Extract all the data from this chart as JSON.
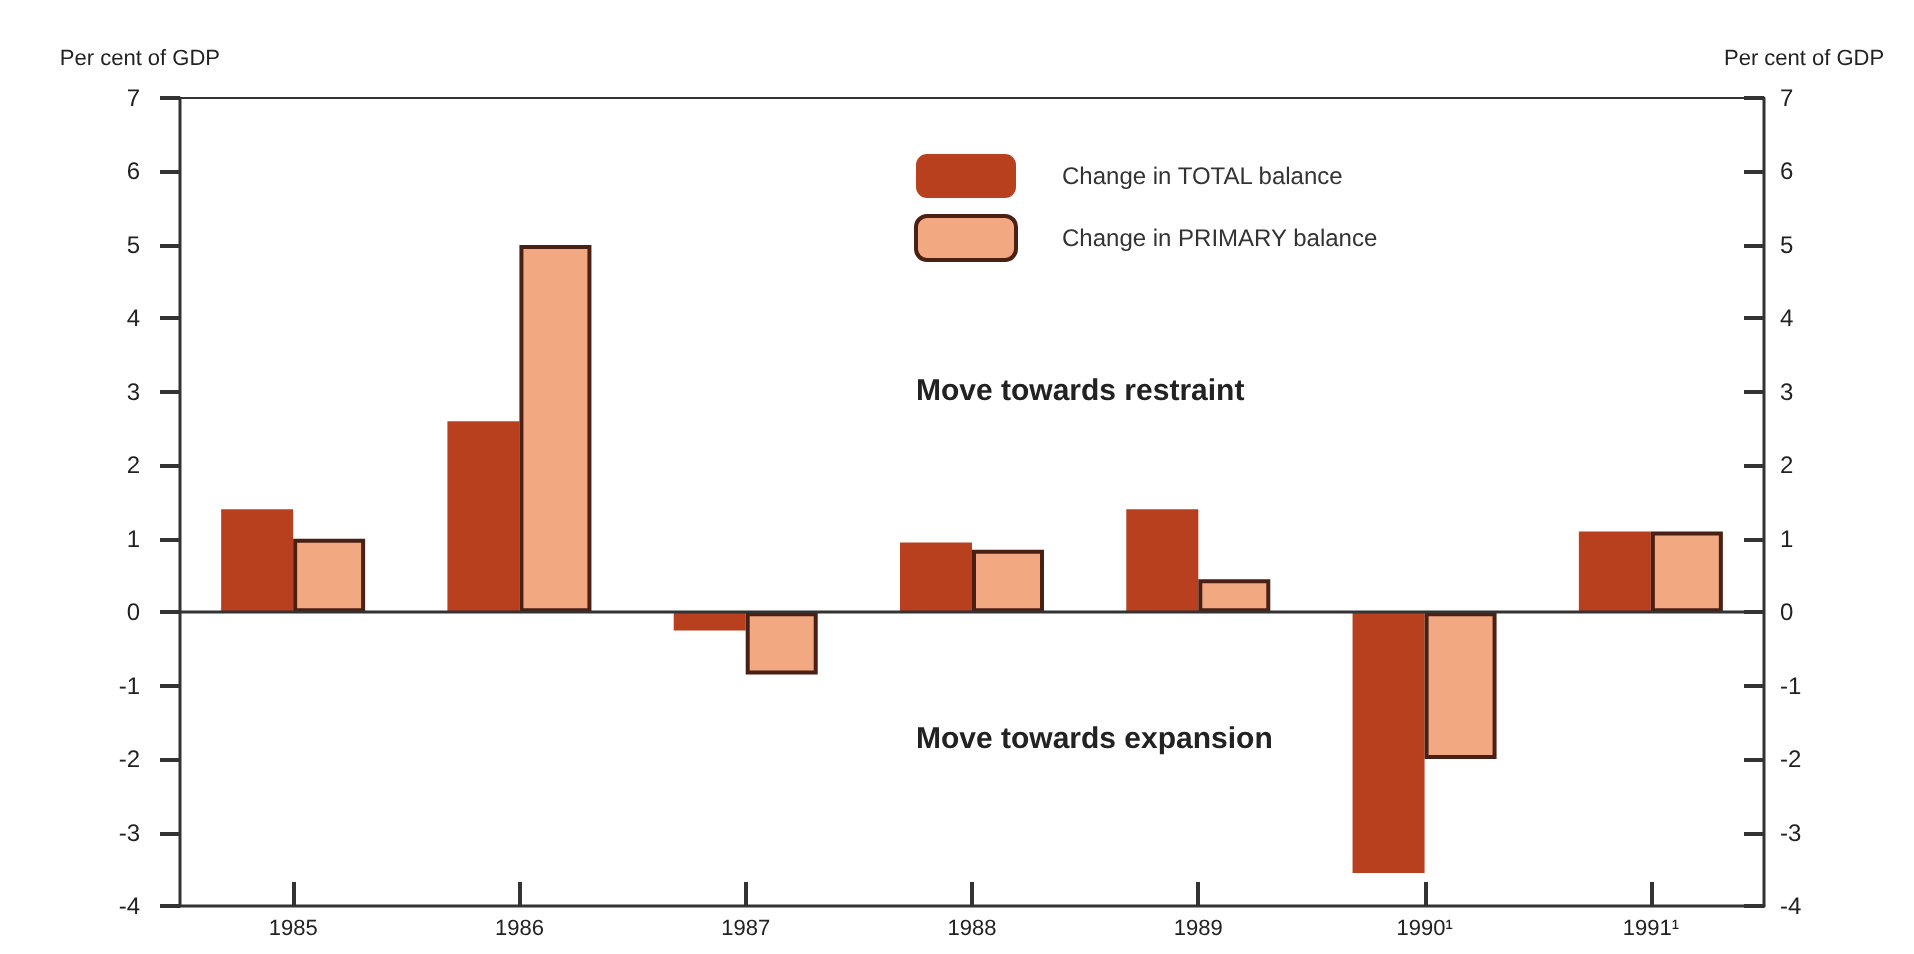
{
  "chart_data": {
    "type": "bar",
    "ylabel": "Per cent of GDP",
    "y2label": "Per cent of GDP",
    "categories": [
      "1985",
      "1986",
      "1987",
      "1988",
      "1989",
      "1990¹",
      "1991¹"
    ],
    "series": [
      {
        "name": "Change in TOTAL balance",
        "color": "#b8401f",
        "values": [
          1.4,
          2.6,
          -0.25,
          0.95,
          1.4,
          -3.55,
          1.1
        ]
      },
      {
        "name": "Change in PRIMARY balance",
        "color": "#f2a982",
        "values": [
          1.0,
          5.0,
          -0.85,
          0.85,
          0.45,
          -2.0,
          1.1
        ]
      }
    ],
    "ylim": [
      -4,
      7
    ],
    "yticks": [
      -4,
      -3,
      -2,
      -1,
      0,
      1,
      2,
      3,
      4,
      5,
      6,
      7
    ],
    "y2lim": [
      -4,
      7
    ],
    "y2ticks": [
      -4,
      -3,
      -2,
      -1,
      0,
      1,
      2,
      3,
      4,
      5,
      6,
      7
    ],
    "ref_lines": [
      {
        "axis": "y",
        "value": 0
      }
    ],
    "annotations": [
      "Move towards restraint",
      "Move towards expansion"
    ],
    "grid": false,
    "legend": "top right"
  }
}
